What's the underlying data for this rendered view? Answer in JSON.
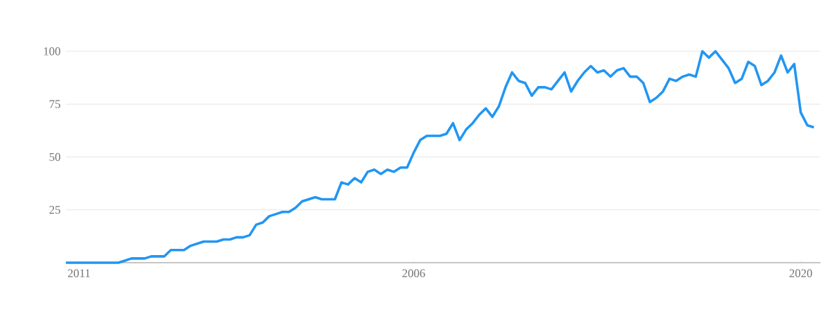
{
  "chart_data": {
    "type": "line",
    "categories": [
      null,
      null,
      "2011",
      null,
      null,
      null,
      null,
      null,
      null,
      null,
      null,
      null,
      null,
      null,
      null,
      null,
      null,
      null,
      null,
      null,
      null,
      null,
      null,
      null,
      null,
      null,
      null,
      null,
      null,
      null,
      null,
      null,
      null,
      null,
      null,
      null,
      null,
      null,
      null,
      null,
      null,
      null,
      null,
      null,
      null,
      null,
      null,
      null,
      null,
      null,
      null,
      null,
      null,
      "2006",
      null,
      null,
      null,
      null,
      null,
      null,
      null,
      null,
      null,
      null,
      null,
      null,
      null,
      null,
      null,
      null,
      null,
      null,
      null,
      null,
      null,
      null,
      null,
      null,
      null,
      null,
      null,
      null,
      null,
      null,
      null,
      null,
      null,
      null,
      null,
      null,
      null,
      null,
      null,
      null,
      null,
      null,
      null,
      null,
      null,
      null,
      null,
      null,
      null,
      null,
      null,
      null,
      null,
      null,
      null,
      null,
      null,
      null,
      "2020",
      null,
      null
    ],
    "series": [
      {
        "color": "#2196f3",
        "values": [
          0,
          0,
          0,
          0,
          0,
          0,
          0,
          0,
          0,
          1,
          2,
          2,
          2,
          3,
          3,
          3,
          6,
          6,
          6,
          8,
          9,
          10,
          10,
          10,
          11,
          11,
          12,
          12,
          13,
          18,
          19,
          22,
          23,
          24,
          24,
          26,
          29,
          30,
          31,
          30,
          30,
          30,
          38,
          37,
          40,
          38,
          43,
          44,
          42,
          44,
          43,
          45,
          45,
          52,
          58,
          60,
          60,
          60,
          61,
          66,
          58,
          63,
          66,
          70,
          73,
          69,
          74,
          83,
          90,
          86,
          85,
          79,
          83,
          83,
          82,
          86,
          90,
          81,
          86,
          90,
          93,
          90,
          91,
          88,
          91,
          92,
          88,
          88,
          85,
          76,
          78,
          81,
          87,
          86,
          88,
          89,
          88,
          100,
          97,
          100,
          96,
          92,
          85,
          87,
          95,
          93,
          84,
          86,
          90,
          98,
          90,
          94,
          71,
          65,
          64
        ]
      }
    ],
    "ylim": [
      0,
      100
    ],
    "yticks": [
      25,
      50,
      75,
      100
    ],
    "grid": "y",
    "marker": "none",
    "line_style": "solid"
  }
}
